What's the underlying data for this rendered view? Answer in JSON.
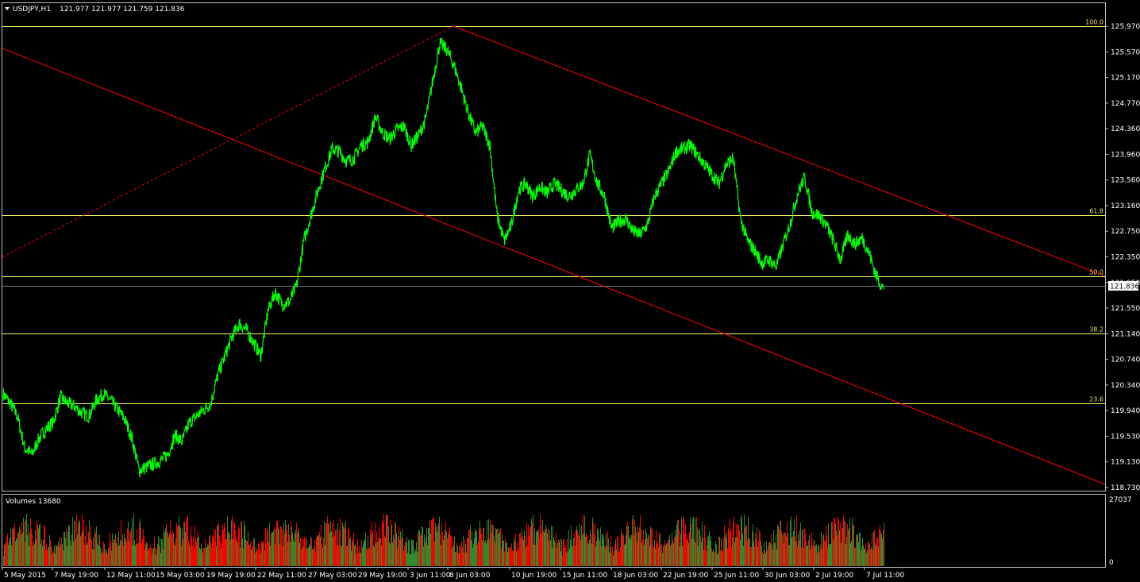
{
  "header": {
    "symbol": "USDJPY,H1",
    "ohlc": "121.977 121.977 121.759 121.836"
  },
  "colors": {
    "background": "#000000",
    "price_line": "#00ff00",
    "channel": "#ff0000",
    "fibo": "#ffff66",
    "grid_frame": "#c0c0c0",
    "volume_up": "#2e8b2e",
    "volume_down": "#ff0000"
  },
  "chart_data": [
    {
      "type": "line",
      "title": "USDJPY,H1",
      "x_tick_labels": [
        "5 May 2015",
        "7 May 19:00",
        "12 May 11:00",
        "15 May 03:00",
        "19 May 19:00",
        "22 May 11:00",
        "27 May 03:00",
        "29 May 19:00",
        "3 Jun 11:00",
        "8 Jun 03:00",
        "10 Jun 19:00",
        "15 Jun 11:00",
        "18 Jun 03:00",
        "22 Jun 19:00",
        "25 Jun 11:00",
        "30 Jun 03:00",
        "2 Jul 19:00",
        "7 Jul 11:00"
      ],
      "y_tick_labels": [
        "125.970",
        "125.570",
        "125.170",
        "124.770",
        "124.360",
        "123.960",
        "123.560",
        "123.160",
        "122.750",
        "122.350",
        "121.950",
        "121.550",
        "121.140",
        "120.740",
        "120.340",
        "119.940",
        "119.530",
        "119.130",
        "118.730"
      ],
      "ylim": [
        118.73,
        125.97
      ],
      "last_price": "121.836",
      "series": [
        {
          "values": [
            120.2,
            120.05,
            119.85,
            119.35,
            119.25,
            119.5,
            119.65,
            119.75,
            120.15,
            120.05,
            120.0,
            119.9,
            119.85,
            120.1,
            120.2,
            120.1,
            119.95,
            119.8,
            119.5,
            119.0,
            119.05,
            119.1,
            119.15,
            119.25,
            119.55,
            119.45,
            119.75,
            119.85,
            119.95,
            120.05,
            120.5,
            120.8,
            121.1,
            121.3,
            121.2,
            121.0,
            120.8,
            121.5,
            121.8,
            121.6,
            121.65,
            121.9,
            122.6,
            123.0,
            123.4,
            123.75,
            124.05,
            124.0,
            123.85,
            123.9,
            124.1,
            124.15,
            124.55,
            124.3,
            124.2,
            124.35,
            124.4,
            124.1,
            124.25,
            124.5,
            125.1,
            125.7,
            125.6,
            125.35,
            125.0,
            124.6,
            124.3,
            124.4,
            124.1,
            123.0,
            122.6,
            122.85,
            123.4,
            123.5,
            123.3,
            123.45,
            123.35,
            123.5,
            123.4,
            123.3,
            123.4,
            123.5,
            123.95,
            123.5,
            123.3,
            122.8,
            122.9,
            122.95,
            122.75,
            122.7,
            122.85,
            123.3,
            123.5,
            123.7,
            124.0,
            124.05,
            124.1,
            123.95,
            123.8,
            123.65,
            123.5,
            123.8,
            123.9,
            122.95,
            122.6,
            122.45,
            122.25,
            122.3,
            122.2,
            122.55,
            122.9,
            123.35,
            123.6,
            123.05,
            123.0,
            122.85,
            122.6,
            122.3,
            122.7,
            122.55,
            122.65,
            122.4,
            122.05,
            121.836
          ]
        }
      ],
      "fibonacci_levels": [
        {
          "label": "100.0",
          "price": 125.97
        },
        {
          "label": "61.8",
          "price": 123.0
        },
        {
          "label": "50.0",
          "price": 122.05
        },
        {
          "label": "38.2",
          "price": 121.15
        },
        {
          "label": "23.6",
          "price": 120.05
        }
      ],
      "channel_lines": [
        {
          "from": [
            0,
            125.62
          ],
          "to": [
            1,
            118.78
          ]
        },
        {
          "from": [
            0.409,
            125.97
          ],
          "to": [
            1,
            122.05
          ]
        }
      ],
      "retracement_line": {
        "from": [
          0,
          122.35
        ],
        "to": [
          0.409,
          125.97
        ]
      }
    },
    {
      "type": "bar",
      "title": "Volumes 13680",
      "y_tick_labels": [
        "27037",
        "0"
      ],
      "ylim": [
        0,
        27037
      ]
    }
  ]
}
